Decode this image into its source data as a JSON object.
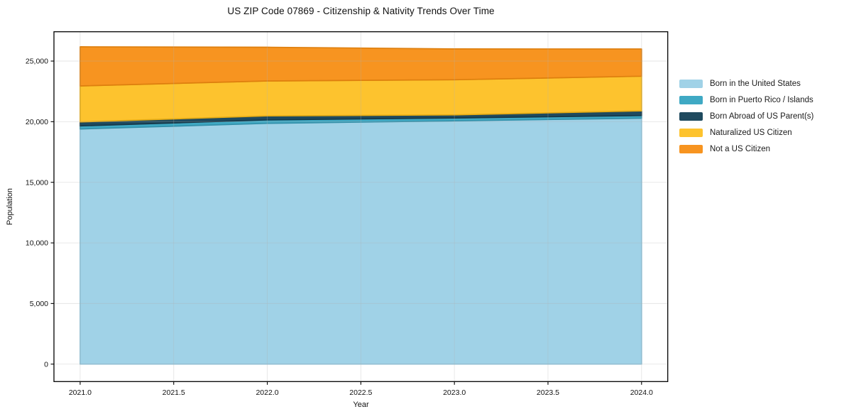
{
  "figure": {
    "background": "#ffffff",
    "frame_color": "#000000",
    "grid_color": "#b0b0b0",
    "text_color": "#111111"
  },
  "chart_data": {
    "type": "area",
    "stacked": true,
    "title": "US ZIP Code 07869 - Citizenship & Nativity Trends Over Time",
    "xlabel": "Year",
    "ylabel": "Population",
    "x": [
      2021,
      2022,
      2023,
      2024
    ],
    "series": [
      {
        "name": "Born in the United States",
        "color": "#a0d2e7",
        "edge": "#8dc3da",
        "values": [
          19400,
          19860,
          20070,
          20290
        ]
      },
      {
        "name": "Born in Puerto Rico / Islands",
        "color": "#3fa9c4",
        "edge": "#3391ab",
        "values": [
          250,
          290,
          235,
          215
        ]
      },
      {
        "name": "Born Abroad of US Parent(s)",
        "color": "#1f4a5f",
        "edge": "#16394a",
        "values": [
          330,
          330,
          255,
          390
        ]
      },
      {
        "name": "Naturalized US Citizen",
        "color": "#fdc32e",
        "edge": "#e5ab14",
        "values": [
          2970,
          2880,
          2900,
          2860
        ]
      },
      {
        "name": "Not a US Citizen",
        "color": "#f79420",
        "edge": "#de7f0e",
        "values": [
          3230,
          2780,
          2540,
          2240
        ]
      }
    ],
    "x_ticks": [
      2021.0,
      2021.5,
      2022.0,
      2022.5,
      2023.0,
      2023.5,
      2024.0
    ],
    "x_tick_labels": [
      "2021.0",
      "2021.5",
      "2022.0",
      "2022.5",
      "2023.0",
      "2023.5",
      "2024.0"
    ],
    "y_ticks": [
      0,
      5000,
      10000,
      15000,
      20000,
      25000
    ],
    "y_tick_labels": [
      "0",
      "5,000",
      "10,000",
      "15,000",
      "20,000",
      "25,000"
    ],
    "xlim": [
      2020.86,
      2024.14
    ],
    "ylim": [
      -1440,
      27420
    ],
    "grid": true,
    "legend_position": "right"
  }
}
